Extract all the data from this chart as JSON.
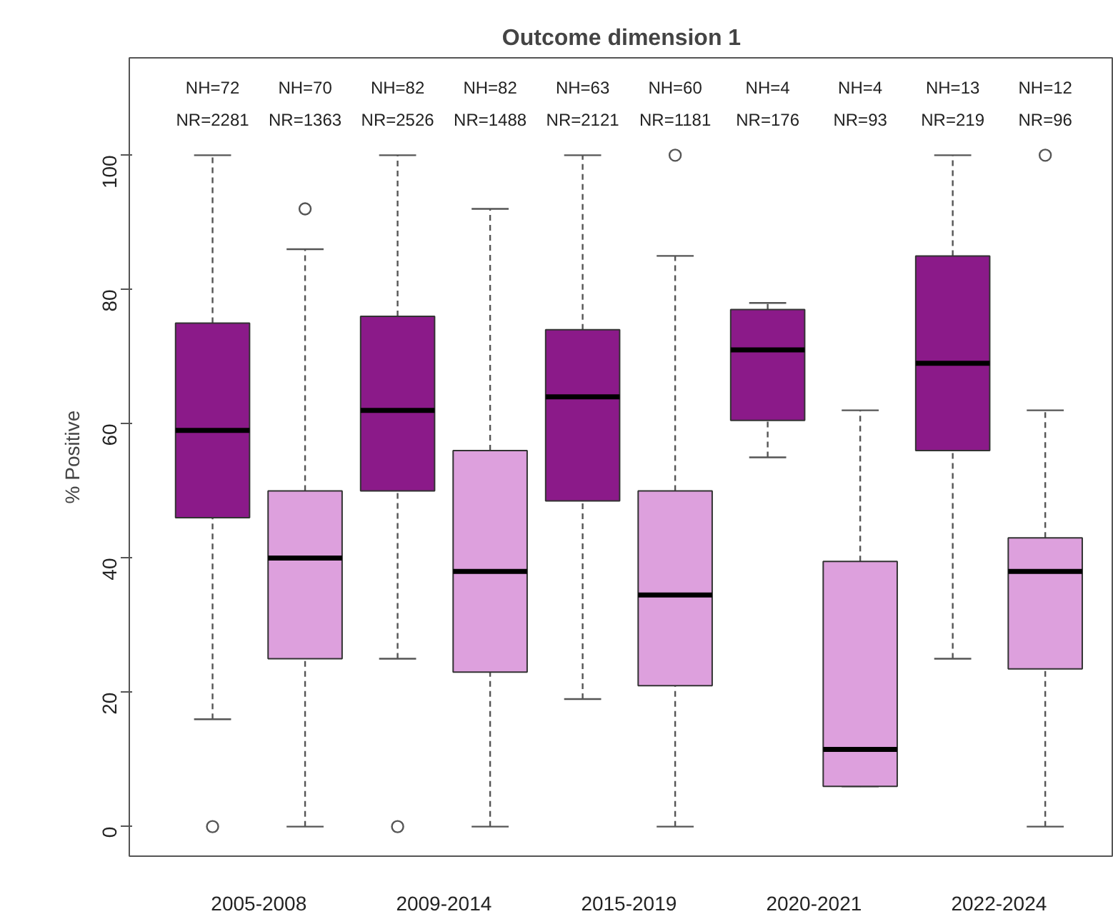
{
  "chart_data": {
    "type": "box",
    "title": "Outcome dimension 1",
    "ylabel": "% Positive",
    "categories": [
      "2005-2008",
      "2009-2014",
      "2015-2019",
      "2020-2021",
      "2022-2024"
    ],
    "ylim": [
      -4.4,
      114.5
    ],
    "yticks": [
      0,
      20,
      40,
      60,
      80,
      100
    ],
    "grid": false,
    "series": [
      {
        "color": "#8b1a89",
        "boxes": [
          {
            "low": 16,
            "q1": 46,
            "median": 59,
            "q3": 75,
            "high": 100,
            "outliers": [
              0
            ]
          },
          {
            "low": 25,
            "q1": 50,
            "median": 62,
            "q3": 76,
            "high": 100,
            "outliers": [
              0
            ]
          },
          {
            "low": 19,
            "q1": 48.5,
            "median": 64,
            "q3": 74,
            "high": 100
          },
          {
            "low": 55,
            "q1": 60.5,
            "median": 71,
            "q3": 77,
            "high": 78
          },
          {
            "low": 25,
            "q1": 56,
            "median": 69,
            "q3": 85,
            "high": 100
          }
        ]
      },
      {
        "color": "#dda0dd",
        "boxes": [
          {
            "low": 0,
            "q1": 25,
            "median": 40,
            "q3": 50,
            "high": 86,
            "outliers": [
              92
            ]
          },
          {
            "low": 0,
            "q1": 23,
            "median": 38,
            "q3": 56,
            "high": 92
          },
          {
            "low": 0,
            "q1": 21,
            "median": 34.5,
            "q3": 50,
            "high": 85,
            "outliers": [
              100
            ]
          },
          {
            "low": 6,
            "q1": 6,
            "median": 11.5,
            "q3": 39.5,
            "high": 62
          },
          {
            "low": 0,
            "q1": 23.5,
            "median": 38,
            "q3": 43,
            "high": 62,
            "outliers": [
              100
            ]
          }
        ]
      }
    ],
    "annotations": [
      "NH=72\nNR=2281",
      "NH=70\nNR=1363",
      "NH=82\nNR=2526",
      "NH=82\nNR=1488",
      "NH=63\nNR=2121",
      "NH=60\nNR=1181",
      "NH=4\nNR=176",
      "NH=4\nNR=93",
      "NH=13\nNR=219",
      "NH=12\nNR=96"
    ]
  }
}
